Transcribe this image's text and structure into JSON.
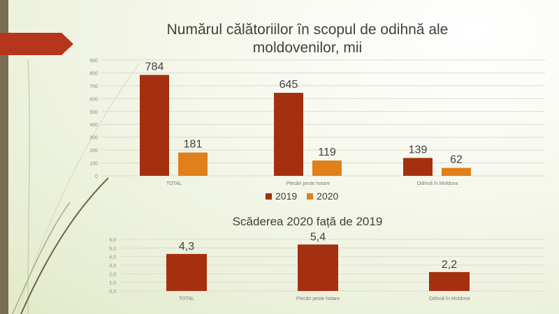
{
  "colors": {
    "c2019": "#a5300f",
    "c2020": "#e0801a",
    "accent": "#b5361d",
    "strip": "#7a6d53"
  },
  "chart_data": [
    {
      "type": "bar",
      "title": "Numărul călătoriilor în scopul de odihnă ale moldovenilor, mii",
      "categories": [
        "TOTAL",
        "Plecări peste hotare",
        "Odihnă în Moldova"
      ],
      "series": [
        {
          "name": "2019",
          "values": [
            784,
            645,
            139
          ]
        },
        {
          "name": "2020",
          "values": [
            181,
            119,
            62
          ]
        }
      ],
      "yticks": [
        "0",
        "100",
        "200",
        "300",
        "400",
        "500",
        "600",
        "700",
        "800",
        "900"
      ],
      "ylim": [
        0,
        900
      ],
      "legend": "bottom",
      "grid": true
    },
    {
      "type": "bar",
      "title": "Scăderea 2020 față de 2019",
      "categories": [
        "TOTAL",
        "Plecări peste hotare",
        "Odihnă în Moldova"
      ],
      "values": [
        4.3,
        5.4,
        2.2
      ],
      "labels": [
        "4,3",
        "5,4",
        "2,2"
      ],
      "yticks": [
        "0,0",
        "1,0",
        "2,0",
        "3,0",
        "4,0",
        "5,0",
        "6,0"
      ],
      "ylim": [
        0,
        6
      ],
      "grid": true
    }
  ]
}
